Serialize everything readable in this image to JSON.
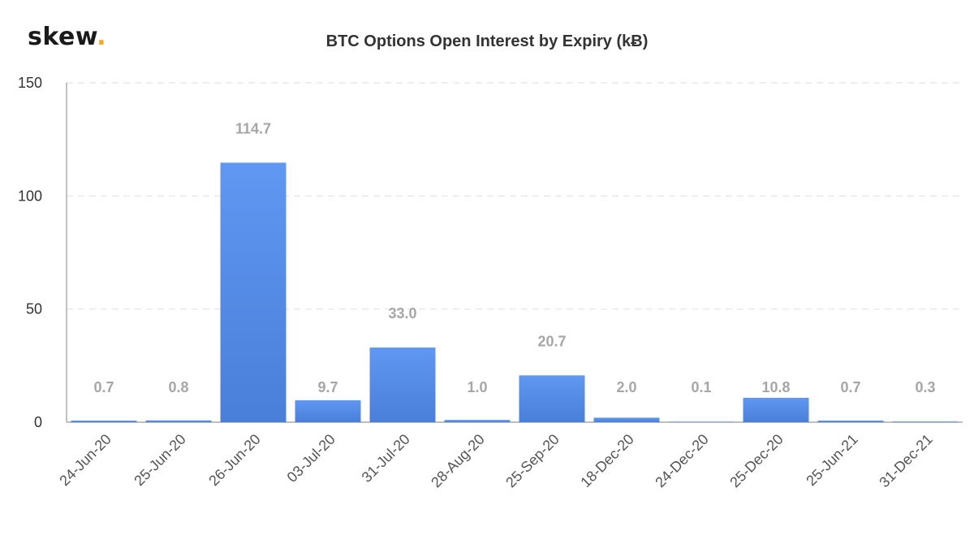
{
  "brand": {
    "name": "skew",
    "dot": "."
  },
  "colors": {
    "bar_top": "#5f97f2",
    "bar_bottom": "#4a7fd9",
    "grid": "#e3e3e3",
    "axis": "#999999",
    "label": "#a6a6a6",
    "brand_dot": "#f5a623"
  },
  "chart_data": {
    "type": "bar",
    "title": "BTC Options Open Interest by Expiry (kɃ)",
    "xlabel": "",
    "ylabel": "",
    "ylim": [
      0,
      150
    ],
    "yticks": [
      0,
      50,
      100,
      150
    ],
    "grid": true,
    "categories": [
      "24-Jun-20",
      "25-Jun-20",
      "26-Jun-20",
      "03-Jul-20",
      "31-Jul-20",
      "28-Aug-20",
      "25-Sep-20",
      "18-Dec-20",
      "24-Dec-20",
      "25-Dec-20",
      "25-Jun-21",
      "31-Dec-21"
    ],
    "values": [
      0.7,
      0.8,
      114.7,
      9.7,
      33.0,
      1.0,
      20.7,
      2.0,
      0.1,
      10.8,
      0.7,
      0.3
    ],
    "data_labels": [
      "0.7",
      "0.8",
      "114.7",
      "9.7",
      "33.0",
      "1.0",
      "20.7",
      "2.0",
      "0.1",
      "10.8",
      "0.7",
      "0.3"
    ]
  }
}
